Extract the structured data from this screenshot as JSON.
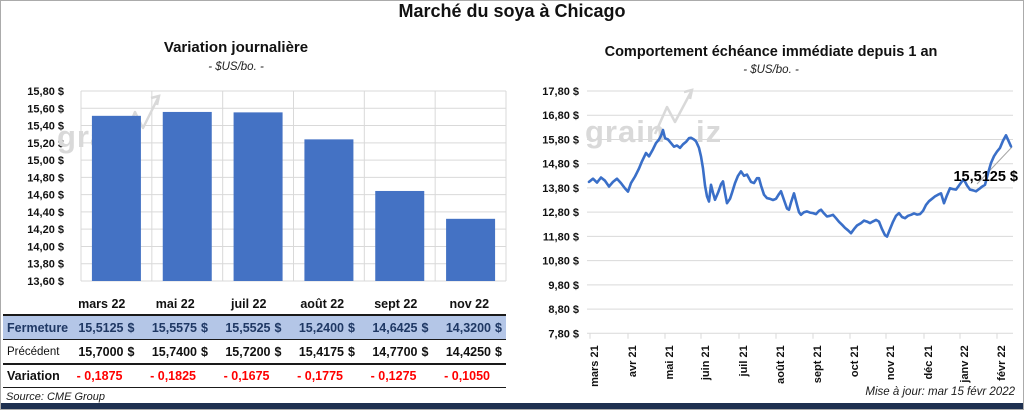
{
  "page": {
    "title": "Marché du soya à Chicago",
    "source_note": "Source: CME Group",
    "update_note": "Mise à jour: mar 15 févr 2022",
    "watermark_prefix": "grain",
    "watermark_suffix": "iz"
  },
  "colors": {
    "bar": "#4472c4",
    "line": "#3a6fc8",
    "grid": "#d9d9d9",
    "watermark": "#d9d9d9",
    "close_row_bg": "#b4c6e7",
    "close_text": "#1f3864",
    "negative": "#ff0000",
    "leader": "#a6a6a6"
  },
  "chart_data": [
    {
      "type": "bar",
      "title": "Variation  journalière",
      "subtitle": "- $US/bo. -",
      "categories": [
        "mars 22",
        "mai 22",
        "juil 22",
        "août 22",
        "sept 22",
        "nov 22"
      ],
      "values": [
        15.5125,
        15.5575,
        15.5525,
        15.24,
        14.6425,
        14.32
      ],
      "ylim": [
        13.6,
        15.8
      ],
      "ytick_step": 0.2,
      "ytick_labels": [
        "15,80 $",
        "15,60 $",
        "15,40 $",
        "15,20 $",
        "15,00 $",
        "14,80 $",
        "14,60 $",
        "14,40 $",
        "14,20 $",
        "14,00 $",
        "13,80 $",
        "13,60 $"
      ],
      "grid": true,
      "legend": "none"
    },
    {
      "type": "line",
      "title": "Comportement  échéance immédiate depuis 1 an",
      "subtitle": "- $US/bo. -",
      "x_labels": [
        "mars 21",
        "avr 21",
        "mai 21",
        "juin 21",
        "juil 21",
        "août 21",
        "sept 21",
        "oct 21",
        "nov 21",
        "déc 21",
        "janv 22",
        "févr 22"
      ],
      "x_tick_offsets": [
        3,
        41,
        78,
        114,
        152,
        189,
        226,
        263,
        299,
        337,
        373,
        410
      ],
      "ylim": [
        7.8,
        17.8
      ],
      "ytick_step": 1.0,
      "ytick_labels": [
        "17,80 $",
        "16,80 $",
        "15,80 $",
        "14,80 $",
        "13,80 $",
        "12,80 $",
        "11,80 $",
        "10,80 $",
        "9,80 $",
        "8,80 $",
        "7,80 $"
      ],
      "annotation": "15,5125 $",
      "last_value": 15.5125,
      "grid": true,
      "legend": "none",
      "points": [
        [
          2,
          14.05
        ],
        [
          6,
          14.18
        ],
        [
          10,
          14.02
        ],
        [
          14,
          14.23
        ],
        [
          18,
          14.1
        ],
        [
          22,
          13.86
        ],
        [
          26,
          14.05
        ],
        [
          30,
          14.18
        ],
        [
          34,
          14.0
        ],
        [
          38,
          13.78
        ],
        [
          41,
          13.65
        ],
        [
          44,
          14.0
        ],
        [
          48,
          14.27
        ],
        [
          52,
          14.6
        ],
        [
          55,
          14.9
        ],
        [
          59,
          15.24
        ],
        [
          62,
          15.1
        ],
        [
          66,
          15.4
        ],
        [
          69,
          15.65
        ],
        [
          72,
          15.8
        ],
        [
          74,
          15.95
        ],
        [
          76,
          16.19
        ],
        [
          78,
          15.85
        ],
        [
          81,
          15.8
        ],
        [
          84,
          15.65
        ],
        [
          87,
          15.5
        ],
        [
          90,
          15.55
        ],
        [
          93,
          15.45
        ],
        [
          96,
          15.6
        ],
        [
          99,
          15.7
        ],
        [
          102,
          15.85
        ],
        [
          104,
          15.87
        ],
        [
          107,
          15.8
        ],
        [
          109,
          15.73
        ],
        [
          112,
          15.45
        ],
        [
          114,
          15.1
        ],
        [
          116,
          14.6
        ],
        [
          118,
          13.9
        ],
        [
          120,
          13.45
        ],
        [
          122,
          13.24
        ],
        [
          124,
          13.93
        ],
        [
          126,
          13.6
        ],
        [
          128,
          13.31
        ],
        [
          131,
          13.6
        ],
        [
          134,
          13.95
        ],
        [
          136,
          14.07
        ],
        [
          138,
          13.6
        ],
        [
          140,
          13.17
        ],
        [
          143,
          13.35
        ],
        [
          145,
          13.6
        ],
        [
          148,
          14.0
        ],
        [
          151,
          14.3
        ],
        [
          154,
          14.48
        ],
        [
          157,
          14.3
        ],
        [
          160,
          14.35
        ],
        [
          164,
          14.05
        ],
        [
          167,
          14.0
        ],
        [
          170,
          14.2
        ],
        [
          172,
          14.2
        ],
        [
          174,
          13.9
        ],
        [
          177,
          13.52
        ],
        [
          180,
          13.38
        ],
        [
          183,
          13.35
        ],
        [
          186,
          13.3
        ],
        [
          189,
          13.35
        ],
        [
          192,
          13.55
        ],
        [
          194,
          13.66
        ],
        [
          197,
          13.3
        ],
        [
          200,
          12.95
        ],
        [
          202,
          12.9
        ],
        [
          204,
          13.2
        ],
        [
          207,
          13.58
        ],
        [
          210,
          13.1
        ],
        [
          212,
          12.8
        ],
        [
          214,
          12.69
        ],
        [
          217,
          12.8
        ],
        [
          220,
          12.83
        ],
        [
          223,
          12.78
        ],
        [
          226,
          12.76
        ],
        [
          229,
          12.72
        ],
        [
          232,
          12.85
        ],
        [
          234,
          12.9
        ],
        [
          237,
          12.75
        ],
        [
          240,
          12.62
        ],
        [
          243,
          12.65
        ],
        [
          246,
          12.69
        ],
        [
          249,
          12.55
        ],
        [
          252,
          12.4
        ],
        [
          255,
          12.28
        ],
        [
          258,
          12.15
        ],
        [
          261,
          12.05
        ],
        [
          264,
          11.93
        ],
        [
          267,
          12.1
        ],
        [
          270,
          12.25
        ],
        [
          274,
          12.35
        ],
        [
          277,
          12.45
        ],
        [
          280,
          12.41
        ],
        [
          283,
          12.35
        ],
        [
          286,
          12.42
        ],
        [
          289,
          12.48
        ],
        [
          292,
          12.41
        ],
        [
          295,
          12.1
        ],
        [
          298,
          11.85
        ],
        [
          300,
          11.79
        ],
        [
          303,
          12.1
        ],
        [
          306,
          12.4
        ],
        [
          309,
          12.65
        ],
        [
          312,
          12.76
        ],
        [
          315,
          12.6
        ],
        [
          318,
          12.55
        ],
        [
          321,
          12.65
        ],
        [
          324,
          12.69
        ],
        [
          327,
          12.75
        ],
        [
          330,
          12.7
        ],
        [
          333,
          12.72
        ],
        [
          336,
          12.85
        ],
        [
          339,
          13.1
        ],
        [
          342,
          13.25
        ],
        [
          345,
          13.35
        ],
        [
          348,
          13.45
        ],
        [
          351,
          13.52
        ],
        [
          354,
          13.58
        ],
        [
          357,
          13.17
        ],
        [
          360,
          13.5
        ],
        [
          363,
          13.79
        ],
        [
          366,
          13.75
        ],
        [
          369,
          13.73
        ],
        [
          372,
          13.9
        ],
        [
          375,
          14.07
        ],
        [
          377,
          14.14
        ],
        [
          380,
          13.9
        ],
        [
          383,
          13.73
        ],
        [
          386,
          13.7
        ],
        [
          389,
          13.66
        ],
        [
          392,
          13.75
        ],
        [
          395,
          13.85
        ],
        [
          398,
          13.93
        ],
        [
          401,
          14.4
        ],
        [
          404,
          14.83
        ],
        [
          407,
          15.11
        ],
        [
          410,
          15.3
        ],
        [
          413,
          15.45
        ],
        [
          416,
          15.75
        ],
        [
          419,
          15.97
        ],
        [
          422,
          15.7
        ],
        [
          424,
          15.5125
        ]
      ]
    }
  ],
  "table": {
    "columns": [
      "mars 22",
      "mai 22",
      "juil 22",
      "août 22",
      "sept 22",
      "nov 22"
    ],
    "rows": [
      {
        "label": "Fermeture",
        "style": "close",
        "currency": "$",
        "values": [
          "15,5125",
          "15,5575",
          "15,5525",
          "15,2400",
          "14,6425",
          "14,3200"
        ]
      },
      {
        "label": "Précédent",
        "style": "prev",
        "currency": "$",
        "values": [
          "15,7000",
          "15,7400",
          "15,7200",
          "15,4175",
          "14,7700",
          "14,4250"
        ]
      },
      {
        "label": "Variation",
        "style": "var",
        "currency": "",
        "values": [
          "- 0,1875",
          "- 0,1825",
          "- 0,1675",
          "- 0,1775",
          "- 0,1275",
          "- 0,1050"
        ]
      }
    ]
  }
}
